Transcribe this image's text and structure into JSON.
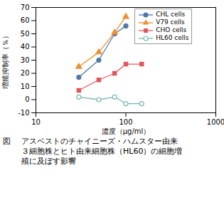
{
  "chart_data": {
    "type": "line",
    "xlabel": "濃度（μg/ml）",
    "ylabel": "増殖抑制率（％）",
    "log": "x",
    "xlim": [
      10,
      1000
    ],
    "xticks": [
      10,
      100,
      1000
    ],
    "ylim": [
      -10,
      70
    ],
    "yticks": [
      -10,
      0,
      10,
      20,
      30,
      40,
      50,
      60,
      70
    ],
    "grid": false,
    "legend": "upper right",
    "series": [
      {
        "name": "CHL cells",
        "marker": "circle",
        "x": [
          30,
          50,
          75,
          100
        ],
        "values": [
          17,
          30,
          50,
          56
        ]
      },
      {
        "name": "V79 cells",
        "marker": "triangle",
        "x": [
          30,
          50,
          75,
          100
        ],
        "values": [
          25,
          36,
          51,
          63
        ]
      },
      {
        "name": "CHO cells",
        "marker": "square",
        "x": [
          30,
          50,
          75,
          100,
          150
        ],
        "values": [
          7,
          15,
          20,
          27,
          27
        ]
      },
      {
        "name": "HL60 cells",
        "marker": "circle-open",
        "x": [
          30,
          50,
          75,
          100,
          150
        ],
        "values": [
          2,
          0,
          2,
          -3,
          -3
        ]
      }
    ],
    "annotations": [
      "図",
      "アスベストのチャイニーズ・ハムスター由来",
      "３細胞株とヒト由来細胞株（HL60）の細胞増",
      "殖に及ぼす影響"
    ]
  }
}
